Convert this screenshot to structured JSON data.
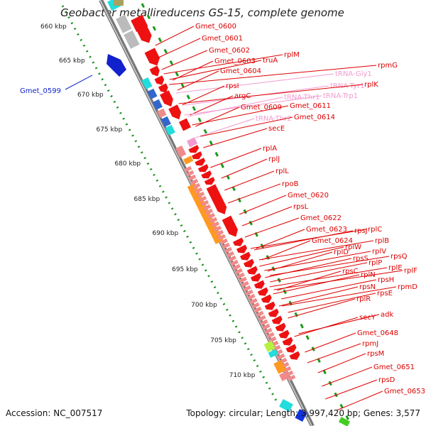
{
  "title": "Geobacter metallireducens GS-15, complete genome",
  "footer": {
    "accession": "Accession: NC_007517",
    "topology": "Topology: circular; Length: 3,997,420 bp; Genes: 3,577"
  },
  "scale_ticks": [
    "660 kbp",
    "665 kbp",
    "670 kbp",
    "675 kbp",
    "680 kbp",
    "685 kbp",
    "690 kbp",
    "695 kbp",
    "700 kbp",
    "705 kbp",
    "710 kbp"
  ],
  "left_label": "Gmet_0599",
  "colors": {
    "gene_red": "#ee1111",
    "pink": "#f08a8a",
    "orange": "#ff9922",
    "blue": "#3366cc",
    "cyan": "#22dddd",
    "gray": "#bbbbbb",
    "green": "#22aa22",
    "trna": "#f29ad0",
    "lime": "#b8f040",
    "dark_blue": "#1122cc"
  },
  "gene_labels": [
    {
      "text": "Gmet_0600",
      "color": "red"
    },
    {
      "text": "Gmet_0601",
      "color": "red"
    },
    {
      "text": "Gmet_0602",
      "color": "red"
    },
    {
      "text": "Gmet_0603",
      "color": "red"
    },
    {
      "text": "truA",
      "color": "red"
    },
    {
      "text": "rplM",
      "color": "red"
    },
    {
      "text": "Gmet_0604",
      "color": "red"
    },
    {
      "text": "tRNA-Gly1",
      "color": "pink"
    },
    {
      "text": "rpmG",
      "color": "red"
    },
    {
      "text": "tRNA-Tyr1",
      "color": "pink"
    },
    {
      "text": "rpsI",
      "color": "red"
    },
    {
      "text": "rplK",
      "color": "red"
    },
    {
      "text": "argC",
      "color": "red"
    },
    {
      "text": "tRNA-Thr1",
      "color": "pink"
    },
    {
      "text": "tRNA-Trp1",
      "color": "pink"
    },
    {
      "text": "Gmet_0609",
      "color": "red"
    },
    {
      "text": "Gmet_0611",
      "color": "red"
    },
    {
      "text": "tRNA-Thr2",
      "color": "pink"
    },
    {
      "text": "Gmet_0614",
      "color": "red"
    },
    {
      "text": "secE",
      "color": "red"
    },
    {
      "text": "rplA",
      "color": "red"
    },
    {
      "text": "rplJ",
      "color": "red"
    },
    {
      "text": "rplL",
      "color": "red"
    },
    {
      "text": "rpoB",
      "color": "red"
    },
    {
      "text": "Gmet_0620",
      "color": "red"
    },
    {
      "text": "rpsL",
      "color": "red"
    },
    {
      "text": "Gmet_0622",
      "color": "red"
    },
    {
      "text": "Gmet_0623",
      "color": "red"
    },
    {
      "text": "rpsJ",
      "color": "red"
    },
    {
      "text": "rplC",
      "color": "red"
    },
    {
      "text": "Gmet_0624",
      "color": "red"
    },
    {
      "text": "rplB",
      "color": "red"
    },
    {
      "text": "rplW",
      "color": "red"
    },
    {
      "text": "rplD",
      "color": "red"
    },
    {
      "text": "rplV",
      "color": "red"
    },
    {
      "text": "rpsS",
      "color": "red"
    },
    {
      "text": "rpsQ",
      "color": "red"
    },
    {
      "text": "rplP",
      "color": "red"
    },
    {
      "text": "rplE",
      "color": "red"
    },
    {
      "text": "rpsC",
      "color": "red"
    },
    {
      "text": "rplF",
      "color": "red"
    },
    {
      "text": "rplN",
      "color": "red"
    },
    {
      "text": "rpsH",
      "color": "red"
    },
    {
      "text": "rpmD",
      "color": "red"
    },
    {
      "text": "rpsN",
      "color": "red"
    },
    {
      "text": "rpsE",
      "color": "red"
    },
    {
      "text": "rplR",
      "color": "red"
    },
    {
      "text": "secY",
      "color": "red"
    },
    {
      "text": "adk",
      "color": "red"
    },
    {
      "text": "Gmet_0648",
      "color": "red"
    },
    {
      "text": "rpmJ",
      "color": "red"
    },
    {
      "text": "rpsM",
      "color": "red"
    },
    {
      "text": "Gmet_0651",
      "color": "red"
    },
    {
      "text": "rpsD",
      "color": "red"
    },
    {
      "text": "Gmet_0653",
      "color": "red"
    }
  ]
}
